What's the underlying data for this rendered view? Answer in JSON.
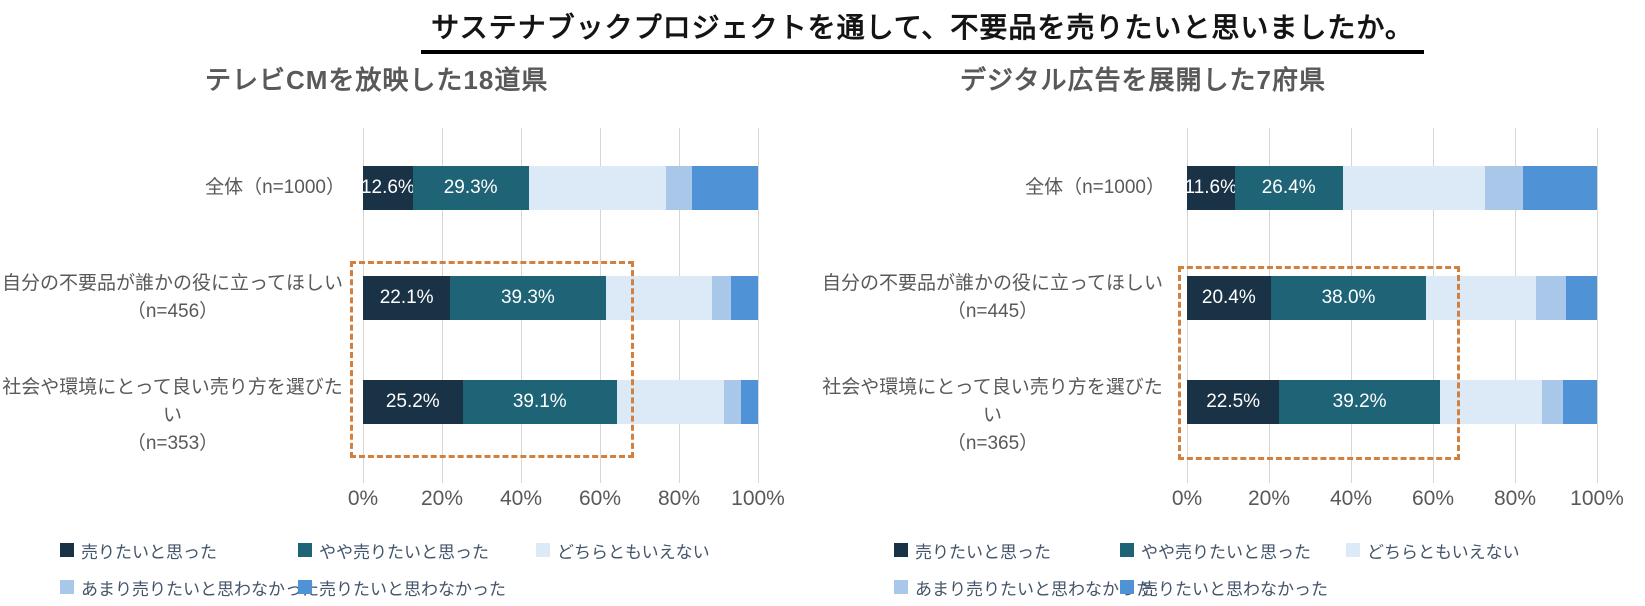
{
  "page": {
    "title": "サステナブックプロジェクトを通して、不要品を売りたいと思いましたか。"
  },
  "legend": {
    "items": [
      {
        "label": "売りたいと思った",
        "color": "#1a3246"
      },
      {
        "label": "やや売りたいと思った",
        "color": "#1f6476"
      },
      {
        "label": "どちらともいえない",
        "color": "#dce9f6"
      },
      {
        "label": "あまり売りたいと思わなかった",
        "color": "#a9c7e8"
      },
      {
        "label": "売りたいと思わなかった",
        "color": "#4f92d5"
      }
    ]
  },
  "chart_data": {
    "type": "bar",
    "orientation": "horizontal",
    "stacked": true,
    "xlim": [
      0,
      100
    ],
    "x_ticks": [
      "0%",
      "20%",
      "40%",
      "60%",
      "80%",
      "100%"
    ],
    "grid": "vertical",
    "legend_position": "bottom",
    "series_names": [
      "売りたいと思った",
      "やや売りたいと思った",
      "どちらともいえない",
      "あまり売りたいと思わなかった",
      "売りたいと思わなかった"
    ],
    "highlight": "上位2段階（売りたいと思った・やや売りたいと思った）の2・3行目を橙色破線枠で強調",
    "charts": [
      {
        "title": "テレビCMを放映した18道県",
        "rows": [
          {
            "label": "全体（n=1000）",
            "values": [
              12.6,
              29.3,
              34.8,
              6.6,
              16.7
            ],
            "show_labels": [
              true,
              true,
              false,
              false,
              false
            ]
          },
          {
            "label": "自分の不要品が誰かの役に立ってほしい",
            "sub": "（n=456）",
            "values": [
              22.1,
              39.3,
              27.0,
              4.8,
              6.8
            ],
            "show_labels": [
              true,
              true,
              false,
              false,
              false
            ]
          },
          {
            "label": "社会や環境にとって良い売り方を選びたい",
            "sub": "（n=353）",
            "values": [
              25.2,
              39.1,
              27.1,
              4.3,
              4.3
            ],
            "show_labels": [
              true,
              true,
              false,
              false,
              false
            ]
          }
        ]
      },
      {
        "title": "デジタル広告を展開した7府県",
        "rows": [
          {
            "label": "全体（n=1000）",
            "values": [
              11.6,
              26.4,
              34.7,
              9.2,
              18.1
            ],
            "show_labels": [
              true,
              true,
              false,
              false,
              false
            ]
          },
          {
            "label": "自分の不要品が誰かの役に立ってほしい",
            "sub": "（n=445）",
            "values": [
              20.4,
              38.0,
              26.8,
              7.2,
              7.6
            ],
            "show_labels": [
              true,
              true,
              false,
              false,
              false
            ]
          },
          {
            "label": "社会や環境にとって良い売り方を選びたい",
            "sub": "（n=365）",
            "values": [
              22.5,
              39.2,
              24.9,
              5.1,
              8.3
            ],
            "show_labels": [
              true,
              true,
              false,
              false,
              false
            ]
          }
        ]
      }
    ]
  }
}
